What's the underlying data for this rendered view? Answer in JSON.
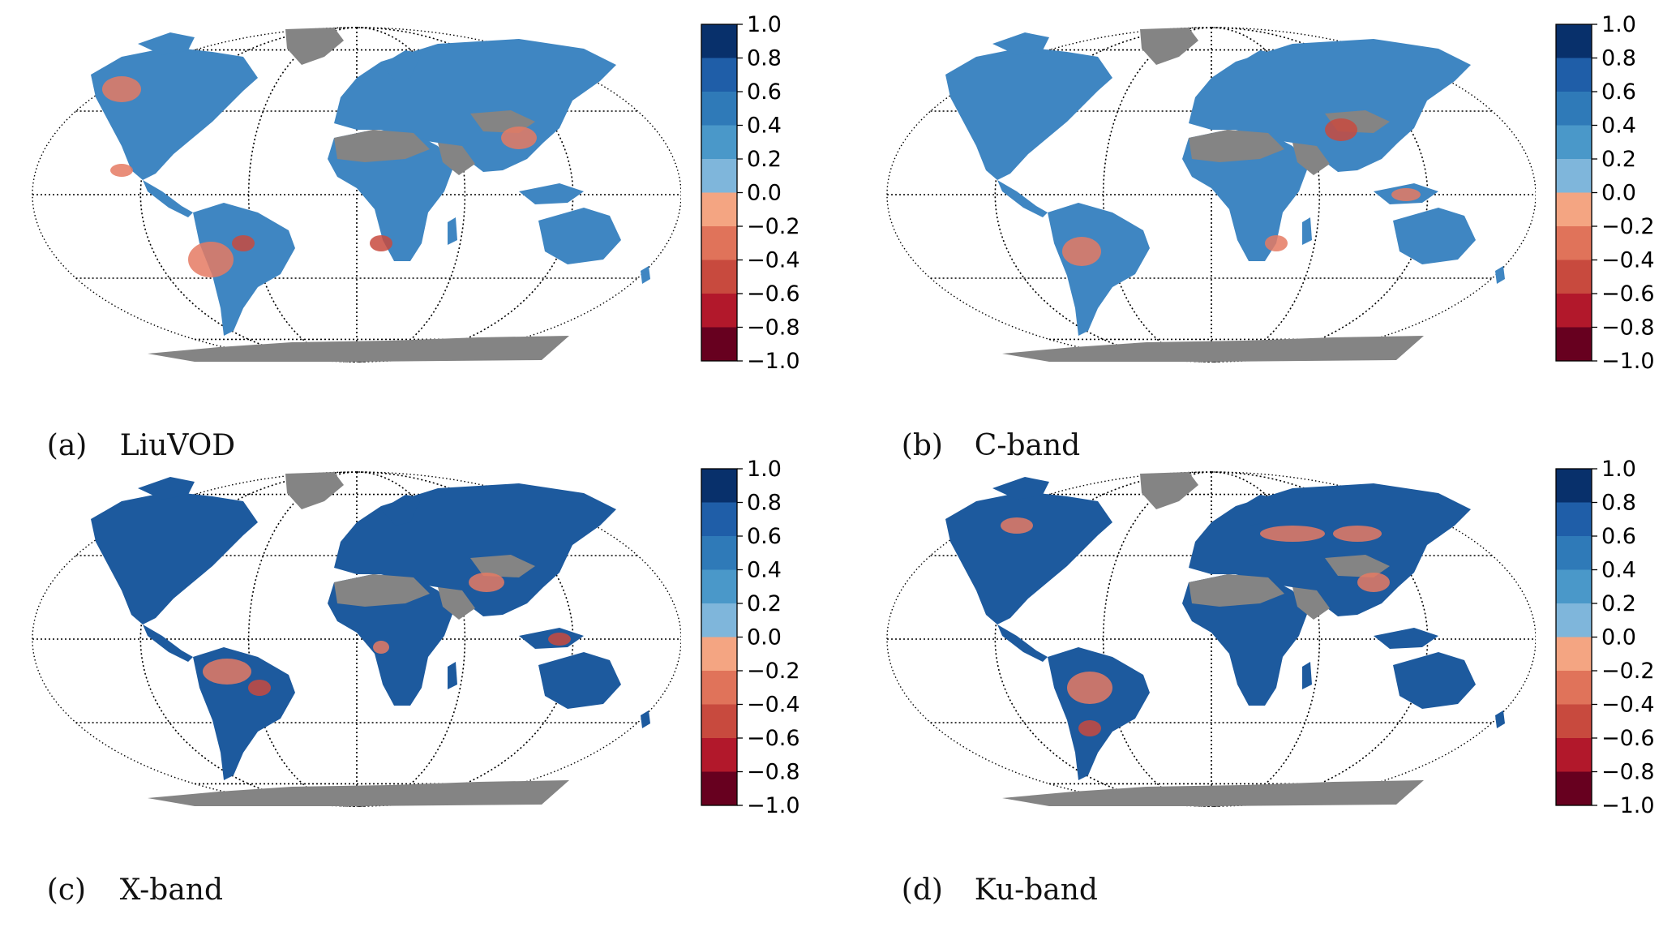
{
  "panels": [
    {
      "letter": "(a)",
      "title": "LiuVOD"
    },
    {
      "letter": "(b)",
      "title": "C-band"
    },
    {
      "letter": "(c)",
      "title": "X-band"
    },
    {
      "letter": "(d)",
      "title": "Ku-band"
    }
  ],
  "colorbar": {
    "ticks": [
      "1.0",
      "0.8",
      "0.6",
      "0.4",
      "0.2",
      "0.0",
      "−0.2",
      "−0.4",
      "−0.6",
      "−0.8",
      "−1.0"
    ],
    "bins_top_to_bottom": [
      "#08306b",
      "#1f5ea8",
      "#2f7ab8",
      "#4a98c9",
      "#7fb6db",
      "#f4a582",
      "#e0735a",
      "#c84a3e",
      "#b2182b",
      "#67001f"
    ]
  },
  "colors": {
    "land_positive": "#3f86c2",
    "land_strong": "#1d5a9e",
    "land_negative": "#e57a63",
    "masked": "#848484",
    "ocean": "#ffffff"
  }
}
